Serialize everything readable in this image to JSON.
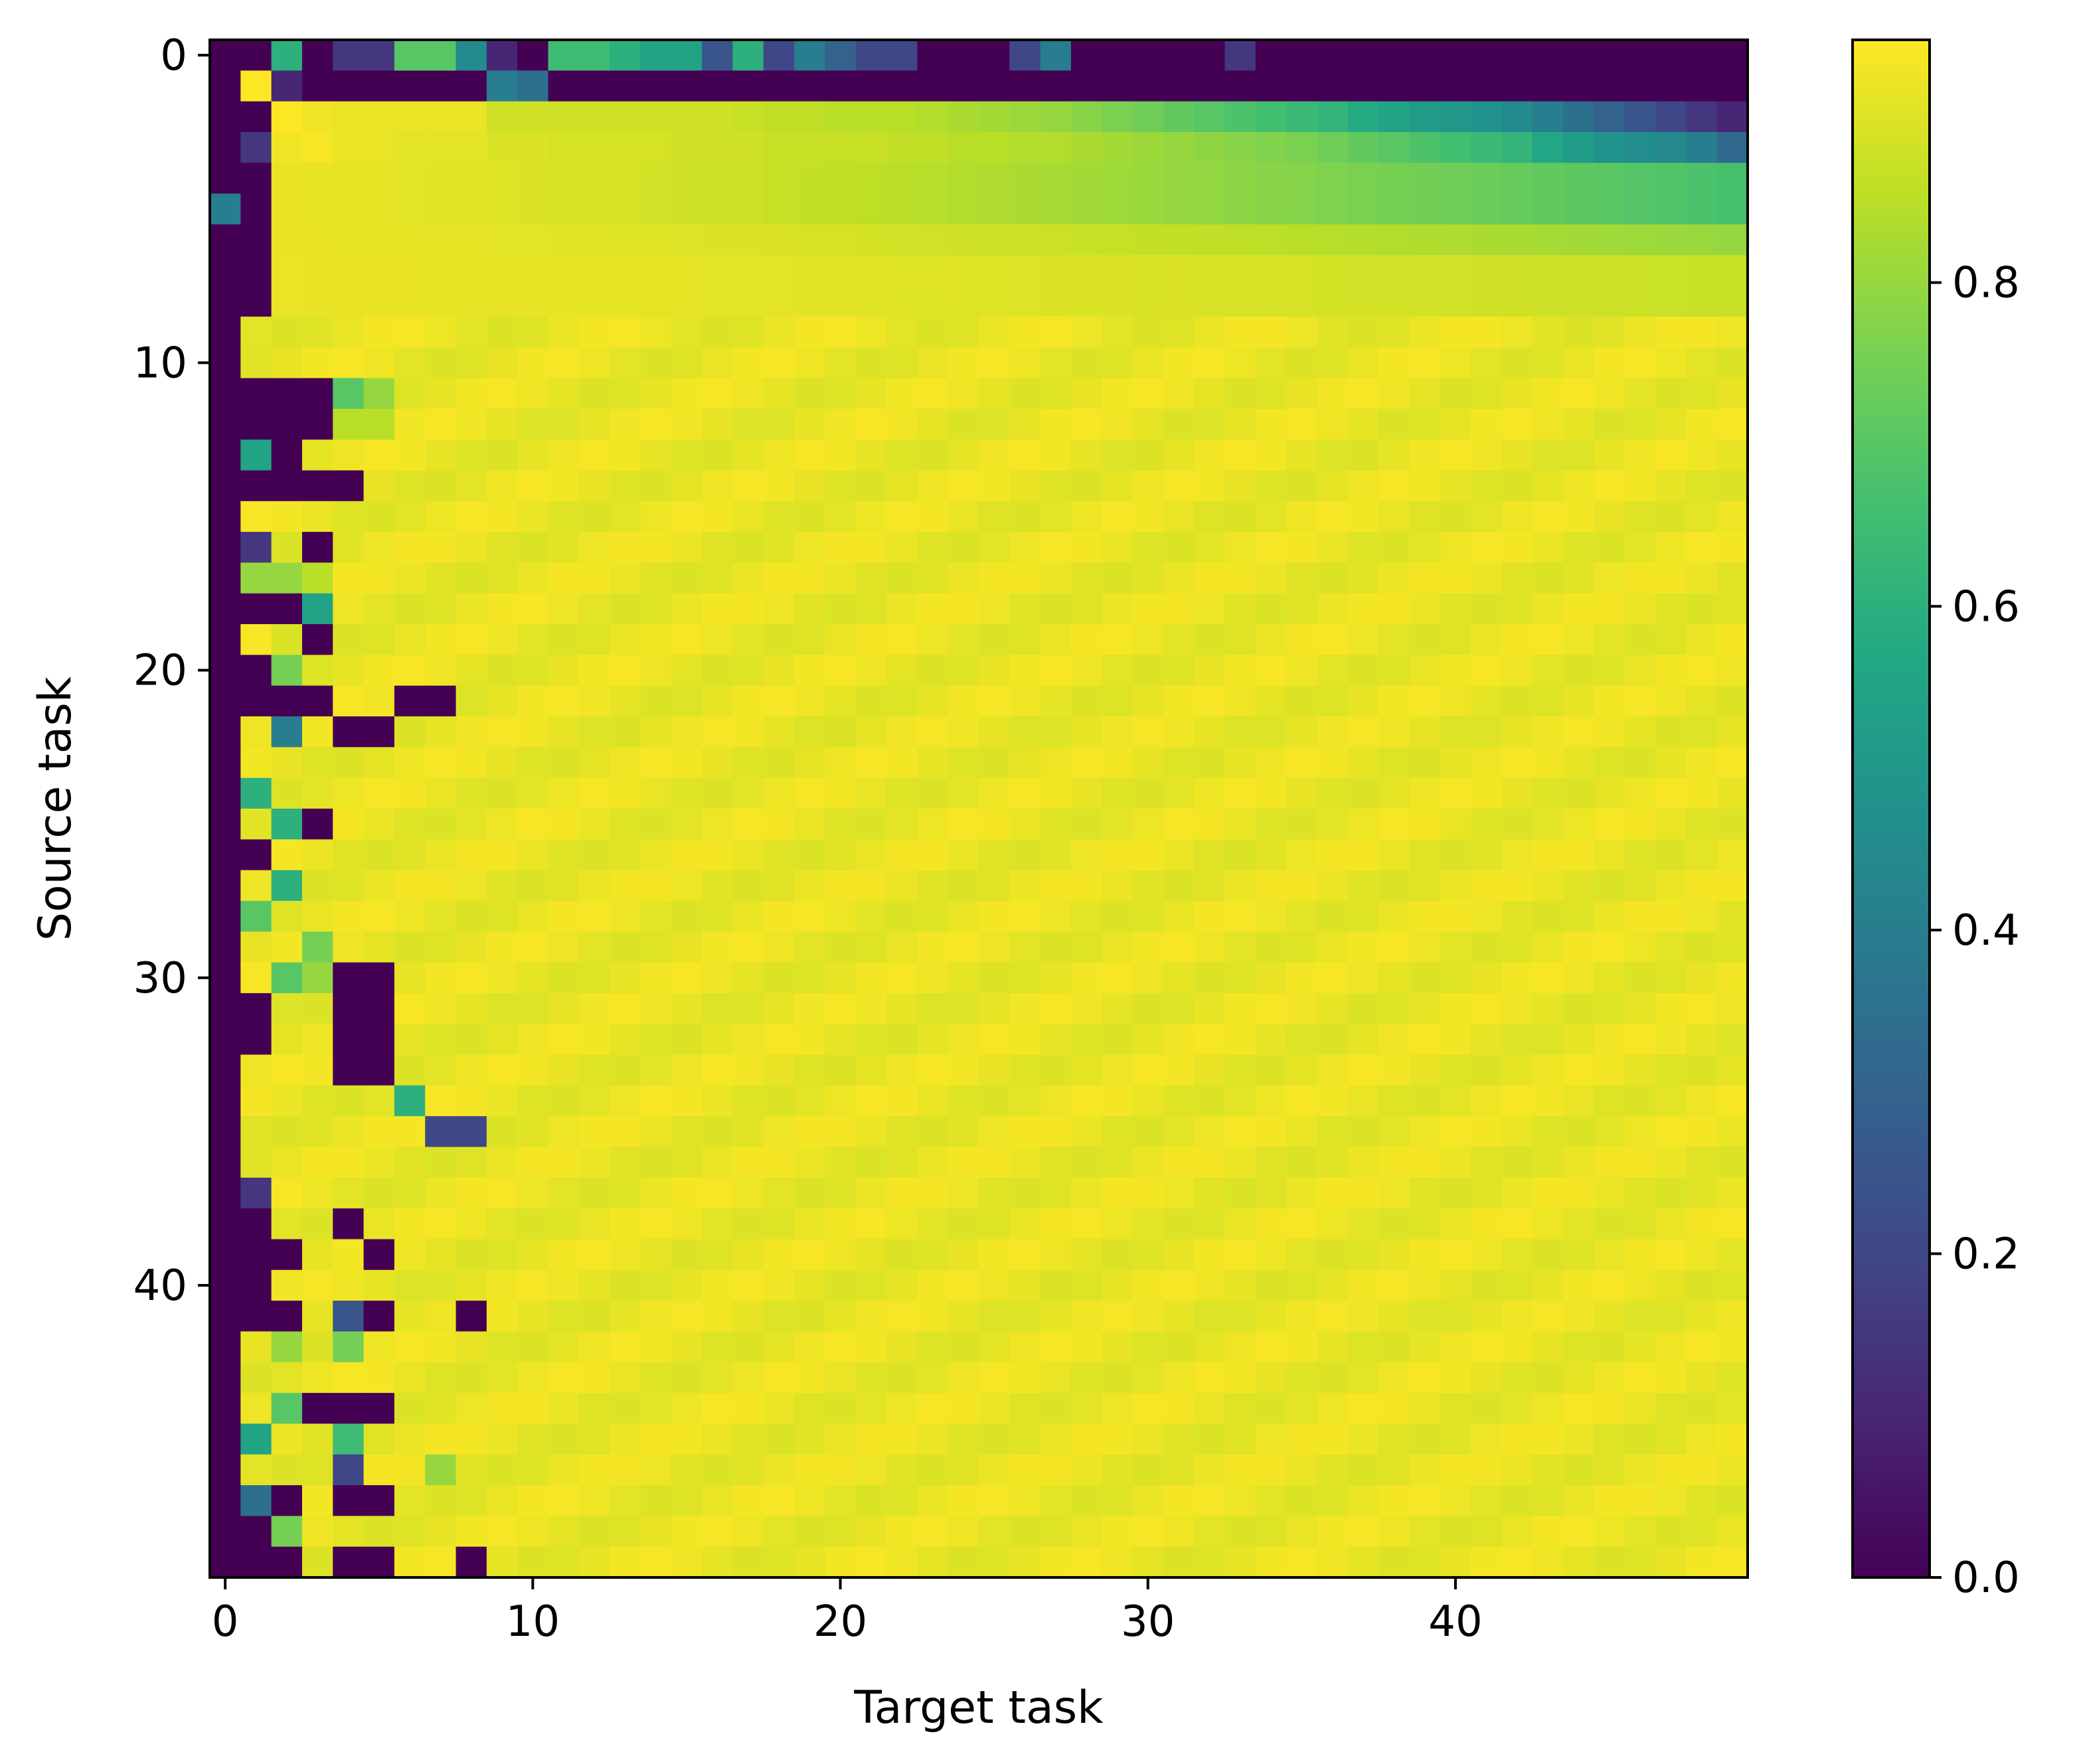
{
  "chart_data": {
    "type": "heatmap",
    "title": "",
    "xlabel": "Target task",
    "ylabel": "Source task",
    "n_rows": 50,
    "n_cols": 50,
    "xlim": [
      -0.5,
      49.5
    ],
    "ylim": [
      49.5,
      -0.5
    ],
    "x_ticks": [
      0,
      10,
      20,
      30,
      40
    ],
    "x_tick_labels": [
      "0",
      "10",
      "20",
      "30",
      "40"
    ],
    "y_ticks": [
      0,
      10,
      20,
      30,
      40
    ],
    "y_tick_labels": [
      "0",
      "10",
      "20",
      "30",
      "40"
    ],
    "colormap": "viridis",
    "colorbar": {
      "vmin": 0.0,
      "vmax": 0.95,
      "ticks": [
        0.0,
        0.2,
        0.4,
        0.6,
        0.8
      ],
      "tick_labels": [
        "0.0",
        "0.2",
        "0.4",
        "0.6",
        "0.8"
      ]
    },
    "grid": false,
    "description_of_values": {
      "row_0": [
        0,
        0,
        0.6,
        0,
        0.15,
        0.15,
        0.7,
        0.7,
        0.45,
        0.1,
        0,
        0.65,
        0.65,
        0.6,
        0.55,
        0.55,
        0.25,
        0.6,
        0.2,
        0.4,
        0.3,
        0.2,
        0.2,
        0,
        0,
        0,
        0.2,
        0.4,
        0,
        0,
        0,
        0,
        0,
        0.15,
        0,
        0,
        0,
        0,
        0,
        0,
        0,
        0,
        0,
        0,
        0,
        0,
        0,
        0,
        0,
        0
      ],
      "row_1": [
        0,
        0.95,
        0.1,
        0,
        0,
        0,
        0,
        0,
        0,
        0.4,
        0.35,
        0,
        0,
        0,
        0,
        0,
        0,
        0,
        0,
        0,
        0,
        0,
        0,
        0,
        0,
        0,
        0,
        0,
        0,
        0,
        0,
        0,
        0,
        0,
        0,
        0,
        0,
        0,
        0,
        0,
        0,
        0,
        0,
        0,
        0,
        0,
        0,
        0,
        0,
        0
      ],
      "row_2": [
        0,
        0,
        0.95,
        0.93,
        0.92,
        0.92,
        0.92,
        0.92,
        0.92,
        0.88,
        0.88,
        0.88,
        0.88,
        0.88,
        0.88,
        0.88,
        0.88,
        0.87,
        0.86,
        0.86,
        0.85,
        0.85,
        0.85,
        0.84,
        0.83,
        0.82,
        0.81,
        0.8,
        0.78,
        0.76,
        0.74,
        0.72,
        0.7,
        0.68,
        0.66,
        0.64,
        0.62,
        0.58,
        0.55,
        0.52,
        0.5,
        0.48,
        0.45,
        0.4,
        0.35,
        0.3,
        0.25,
        0.2,
        0.15,
        0.1
      ],
      "row_3": [
        0,
        0.15,
        0.93,
        0.94,
        0.92,
        0.92,
        0.91,
        0.91,
        0.91,
        0.9,
        0.9,
        0.89,
        0.89,
        0.89,
        0.89,
        0.88,
        0.88,
        0.88,
        0.87,
        0.87,
        0.87,
        0.87,
        0.86,
        0.86,
        0.85,
        0.85,
        0.84,
        0.84,
        0.83,
        0.82,
        0.81,
        0.8,
        0.79,
        0.78,
        0.77,
        0.76,
        0.74,
        0.72,
        0.7,
        0.68,
        0.66,
        0.64,
        0.62,
        0.56,
        0.52,
        0.48,
        0.46,
        0.44,
        0.4,
        0.32
      ]
    },
    "notes_visible": "Rows 4-8 bright yellow fading to green on right; rows 9+ mostly bright yellow with dark column 0 and scattered dark/green cells in columns 0-8."
  },
  "legend": {
    "colorbar_ticks": [
      "0.0",
      "0.2",
      "0.4",
      "0.6",
      "0.8"
    ]
  }
}
